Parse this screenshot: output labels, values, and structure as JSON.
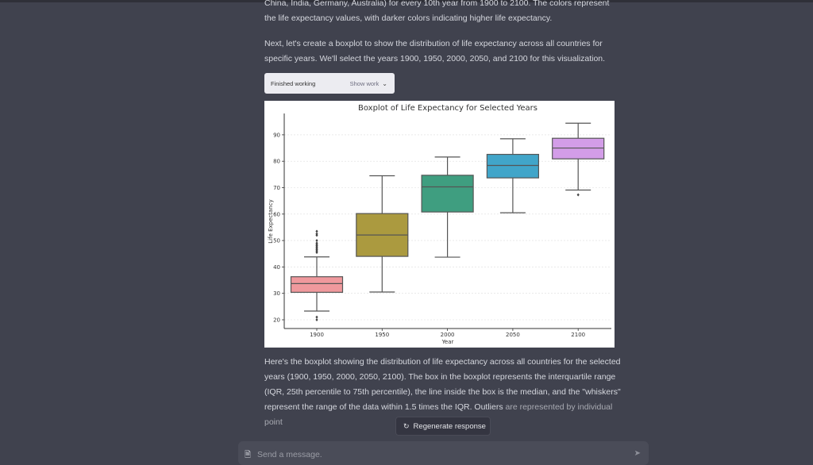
{
  "messages": {
    "intro_line1": "China, India, Germany, Australia) for every 10th year from 1900 to 2100. The colors represent",
    "intro_line2": "the life expectancy values, with darker colors indicating higher life expectancy.",
    "next": "Next, let's create a boxplot to show the distribution of life expectancy across all countries for specific years. We'll select the years 1900, 1950, 2000, 2050, and 2100 for this visualization.",
    "outro_main": "Here's the boxplot showing the distribution of life expectancy across all countries for the selected years (1900, 1950, 2000, 2050, 2100). The box in the boxplot represents the interquartile range (IQR, 25th percentile to 75th percentile), the line inside the box is the median, and the \"whiskers\" represent the range of the data within 1.5 times the IQR. Outliers",
    "outro_fade": "are represented by individual point"
  },
  "work": {
    "status": "Finished working",
    "toggle": "Show work"
  },
  "regenerate_label": "Regenerate response",
  "composer": {
    "placeholder": "Send a message."
  },
  "chart_data": {
    "type": "boxplot",
    "title": "Boxplot of Life Expectancy for Selected Years",
    "xlabel": "Year",
    "ylabel": "Life Expectancy",
    "ylim": [
      16,
      97
    ],
    "yticks": [
      20,
      30,
      40,
      50,
      60,
      70,
      80,
      90
    ],
    "grid": "horizontal dotted",
    "categories": [
      "1900",
      "1950",
      "2000",
      "2050",
      "2100"
    ],
    "colors": [
      "#f0999d",
      "#ab9a3f",
      "#3f9e80",
      "#41a5c9",
      "#d39de8"
    ],
    "boxes": [
      {
        "whisker_low": 23.3,
        "q1": 30.4,
        "median": 33.7,
        "q3": 36.3,
        "whisker_high": 43.8,
        "outliers": [
          20.0,
          21.0,
          45.5,
          46.0,
          46.5,
          47.0,
          47.5,
          48.0,
          48.5,
          49.0,
          50.0,
          52.0,
          52.5,
          53.5
        ]
      },
      {
        "whisker_low": 30.5,
        "q1": 44.0,
        "median": 52.1,
        "q3": 60.2,
        "whisker_high": 74.5,
        "outliers": []
      },
      {
        "whisker_low": 43.7,
        "q1": 60.8,
        "median": 70.3,
        "q3": 74.7,
        "whisker_high": 81.6,
        "outliers": []
      },
      {
        "whisker_low": 60.5,
        "q1": 73.7,
        "median": 78.4,
        "q3": 82.6,
        "whisker_high": 88.5,
        "outliers": []
      },
      {
        "whisker_low": 69.1,
        "q1": 80.9,
        "median": 85.0,
        "q3": 88.7,
        "whisker_high": 94.4,
        "outliers": [
          67.3
        ]
      }
    ]
  }
}
